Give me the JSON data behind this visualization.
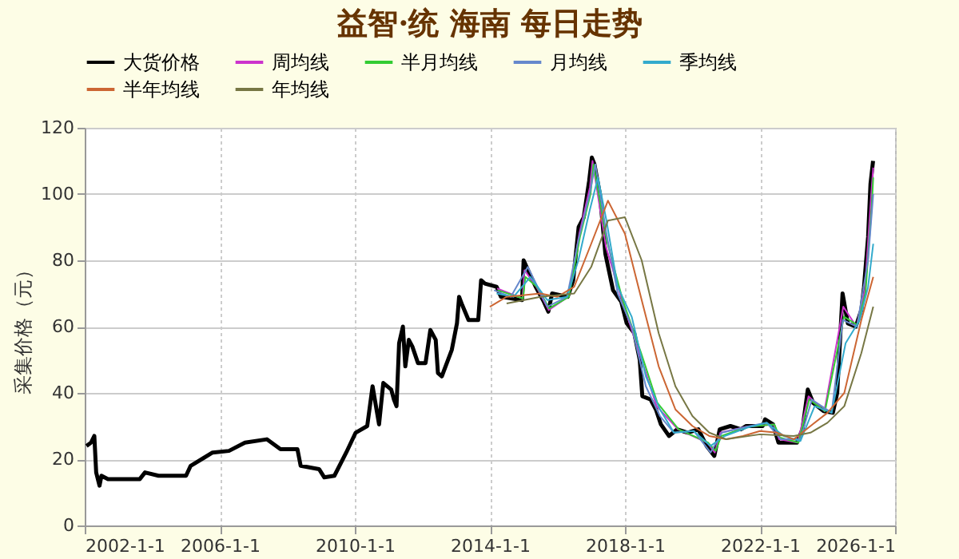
{
  "chart_data": {
    "type": "line",
    "title": "益智·统 海南 每日走势",
    "ylabel": "采集价格（元）",
    "xlim": [
      "2002-01-01",
      "2026-01-01"
    ],
    "xticks": [
      {
        "value": "2002-01-01",
        "label": "2002-1-1"
      },
      {
        "value": "2006-01-01",
        "label": "2006-1-1"
      },
      {
        "value": "2010-01-01",
        "label": "2010-1-1"
      },
      {
        "value": "2014-01-01",
        "label": "2014-1-1"
      },
      {
        "value": "2018-01-01",
        "label": "2018-1-1"
      },
      {
        "value": "2022-01-01",
        "label": "2022-1-1"
      },
      {
        "value": "2026-01-01",
        "label": "2026-1-1"
      }
    ],
    "ylim": [
      0,
      120
    ],
    "yticks": [
      0,
      20,
      40,
      60,
      80,
      100,
      120
    ],
    "grid": true,
    "legend": "top",
    "marker": "none",
    "line_style": "solid",
    "series": [
      {
        "name": "大货价格",
        "color": "#000000",
        "x": [
          "2002-01-20",
          "2002-03-10",
          "2002-04-15",
          "2002-05-05",
          "2002-06-10",
          "2002-07-01",
          "2002-09-10",
          "2003-08-20",
          "2003-10-15",
          "2004-03-10",
          "2005-01-01",
          "2005-02-20",
          "2005-10-15",
          "2006-04-10",
          "2006-10-01",
          "2007-05-25",
          "2007-10-20",
          "2008-04-20",
          "2008-05-25",
          "2008-12-10",
          "2009-02-05",
          "2009-05-25",
          "2009-09-30",
          "2010-01-10",
          "2010-05-15",
          "2010-07-12",
          "2010-09-20",
          "2010-11-05",
          "2011-01-30",
          "2011-02-28",
          "2011-03-28",
          "2011-04-25",
          "2011-06-05",
          "2011-07-01",
          "2011-08-08",
          "2011-09-15",
          "2011-11-15",
          "2012-02-05",
          "2012-03-28",
          "2012-05-25",
          "2012-06-18",
          "2012-07-30",
          "2012-11-15",
          "2013-01-10",
          "2013-02-02",
          "2013-03-08",
          "2013-05-15",
          "2013-08-28",
          "2013-09-28",
          "2013-11-08",
          "2014-03-15",
          "2014-05-01",
          "2014-12-15",
          "2015-01-01",
          "2015-03-15",
          "2015-05-12",
          "2015-08-08",
          "2015-09-25",
          "2015-11-05",
          "2016-04-22",
          "2016-06-20",
          "2016-08-18",
          "2016-10-12",
          "2016-12-10",
          "2017-01-08",
          "2017-02-05",
          "2017-04-05",
          "2017-06-03",
          "2017-08-25",
          "2017-11-22",
          "2018-01-20",
          "2018-04-12",
          "2018-06-10",
          "2018-07-08",
          "2018-10-05",
          "2018-12-02",
          "2019-01-25",
          "2019-04-22",
          "2019-07-20",
          "2019-11-10",
          "2020-03-05",
          "2020-06-02",
          "2020-08-25",
          "2020-10-22",
          "2021-02-15",
          "2021-06-08",
          "2021-08-05",
          "2022-01-30",
          "2022-02-25",
          "2022-05-22",
          "2022-07-20",
          "2023-02-05",
          "2023-04-05",
          "2023-06-02",
          "2023-07-30",
          "2023-11-20",
          "2024-02-28",
          "2024-04-15",
          "2024-06-12",
          "2024-08-08",
          "2024-11-02",
          "2025-01-01",
          "2025-01-30",
          "2025-03-15",
          "2025-04-10",
          "2025-05-08"
        ],
        "values": [
          24,
          25,
          27,
          16,
          12,
          15,
          14,
          14,
          16,
          15,
          15,
          18,
          22,
          22.5,
          25,
          26,
          23,
          23,
          18,
          17,
          14.5,
          15,
          22,
          28,
          30,
          42,
          30.5,
          43,
          41,
          38,
          36,
          55,
          60,
          48,
          56,
          54,
          49,
          49,
          59,
          56,
          46,
          45,
          53,
          61,
          69,
          66.5,
          62,
          62,
          74,
          73,
          72,
          69,
          68,
          80,
          75.5,
          72,
          67.5,
          64.5,
          70,
          69,
          74,
          90,
          93,
          104,
          111,
          109,
          100,
          82,
          71,
          67.5,
          61,
          58,
          50,
          39,
          38,
          35,
          30.5,
          27,
          29,
          28,
          29,
          24,
          21,
          29,
          30,
          29,
          30,
          30,
          32,
          30.5,
          25,
          25,
          29,
          41,
          37,
          34.5,
          34,
          40,
          70,
          61,
          60,
          65,
          72,
          87,
          103,
          110
        ]
      },
      {
        "name": "周均线",
        "color": "#cc33cc",
        "x": [
          "2014-03-20",
          "2014-12-20",
          "2015-01-10",
          "2015-05-20",
          "2015-09-30",
          "2016-04-28",
          "2016-08-25",
          "2016-12-18",
          "2017-01-15",
          "2017-06-10",
          "2017-11-30",
          "2018-06-18",
          "2018-12-10",
          "2019-07-28",
          "2020-06-10",
          "2020-08-30",
          "2020-10-30",
          "2021-08-12",
          "2022-05-28",
          "2022-07-28",
          "2023-02-12",
          "2023-06-10",
          "2023-11-28",
          "2024-06-20",
          "2024-11-10",
          "2025-02-08",
          "2025-04-18",
          "2025-05-10"
        ],
        "values": [
          71.5,
          68.5,
          77,
          72,
          65,
          69,
          88,
          102,
          110,
          84,
          68,
          51,
          36,
          29,
          25,
          22,
          28,
          29.8,
          30.5,
          26,
          25,
          39,
          34.5,
          66,
          60,
          71,
          100,
          108
        ]
      },
      {
        "name": "半月均线",
        "color": "#33cc33",
        "x": [
          "2014-03-25",
          "2014-12-25",
          "2015-01-20",
          "2015-05-25",
          "2015-10-05",
          "2016-05-05",
          "2016-09-01",
          "2016-12-25",
          "2017-01-25",
          "2017-06-18",
          "2017-12-08",
          "2018-06-25",
          "2018-12-18",
          "2019-08-05",
          "2020-06-18",
          "2020-09-08",
          "2020-11-08",
          "2021-08-20",
          "2022-06-05",
          "2022-08-05",
          "2023-02-20",
          "2023-06-18",
          "2023-12-05",
          "2024-06-28",
          "2024-11-18",
          "2025-02-15",
          "2025-04-25",
          "2025-05-10"
        ],
        "values": [
          71,
          68.5,
          75,
          72,
          65.5,
          69,
          87,
          100,
          109,
          86,
          68,
          52,
          37,
          29,
          25,
          22.5,
          27,
          29.8,
          30.5,
          26.5,
          25,
          38,
          34.5,
          63,
          60.5,
          70,
          97,
          105
        ]
      },
      {
        "name": "月均线",
        "color": "#6688cc",
        "x": [
          "2014-02-15",
          "2014-08-15",
          "2015-02-15",
          "2015-09-15",
          "2016-04-15",
          "2016-08-15",
          "2016-12-15",
          "2017-02-15",
          "2017-06-15",
          "2017-10-15",
          "2018-03-15",
          "2018-08-15",
          "2019-01-15",
          "2019-06-15",
          "2020-01-15",
          "2020-07-15",
          "2020-11-15",
          "2021-08-15",
          "2022-03-15",
          "2022-08-15",
          "2023-03-15",
          "2023-07-15",
          "2024-02-15",
          "2024-06-15",
          "2024-11-15",
          "2025-03-15",
          "2025-05-10"
        ],
        "values": [
          71,
          69,
          78,
          66,
          69,
          86,
          100,
          109,
          88,
          70,
          60,
          42,
          33,
          28,
          28.5,
          22,
          28,
          29.8,
          31,
          26,
          26,
          38,
          34,
          62,
          60,
          80,
          100
        ]
      },
      {
        "name": "季均线",
        "color": "#33aacc",
        "x": [
          "2014-03-15",
          "2014-09-15",
          "2015-03-15",
          "2015-09-15",
          "2016-04-15",
          "2016-08-15",
          "2016-12-15",
          "2017-03-15",
          "2017-06-15",
          "2017-10-15",
          "2018-03-15",
          "2018-08-15",
          "2019-01-15",
          "2019-06-15",
          "2020-01-15",
          "2020-07-15",
          "2020-12-15",
          "2021-08-15",
          "2022-03-15",
          "2022-09-15",
          "2023-03-15",
          "2023-08-15",
          "2024-02-15",
          "2024-07-15",
          "2024-12-15",
          "2025-03-15",
          "2025-05-10"
        ],
        "values": [
          70,
          69,
          75,
          68,
          69,
          80,
          95,
          105,
          92,
          72,
          63,
          45,
          35,
          28,
          28.5,
          24,
          27,
          29.5,
          31,
          27,
          25.5,
          36,
          34,
          55,
          62,
          72,
          85
        ]
      },
      {
        "name": "半年均线",
        "color": "#cc6633",
        "x": [
          "2014-01-01",
          "2014-07-01",
          "2015-07-01",
          "2016-01-01",
          "2016-07-01",
          "2017-01-01",
          "2017-07-01",
          "2018-01-01",
          "2018-07-01",
          "2019-01-01",
          "2019-07-01",
          "2020-01-01",
          "2020-07-01",
          "2021-01-01",
          "2021-07-01",
          "2022-01-01",
          "2022-07-01",
          "2023-01-01",
          "2023-07-01",
          "2024-01-01",
          "2024-07-01",
          "2025-01-01",
          "2025-05-10"
        ],
        "values": [
          66,
          69,
          70,
          69,
          72,
          85,
          98,
          88,
          68,
          48,
          35,
          30,
          27,
          26,
          27,
          28.5,
          28,
          26,
          30,
          34,
          40,
          62,
          75
        ]
      },
      {
        "name": "年均线",
        "color": "#777744",
        "x": [
          "2014-07-01",
          "2015-07-01",
          "2016-07-01",
          "2017-01-01",
          "2017-07-01",
          "2018-01-01",
          "2018-07-01",
          "2019-01-01",
          "2019-07-01",
          "2020-01-01",
          "2020-07-01",
          "2021-01-01",
          "2022-01-01",
          "2023-01-01",
          "2023-07-01",
          "2024-01-01",
          "2024-07-01",
          "2025-01-01",
          "2025-05-10"
        ],
        "values": [
          67,
          69,
          70,
          78,
          92,
          93,
          80,
          58,
          42,
          33,
          28,
          26,
          27.5,
          27,
          28,
          31,
          36,
          52,
          66
        ]
      }
    ]
  }
}
